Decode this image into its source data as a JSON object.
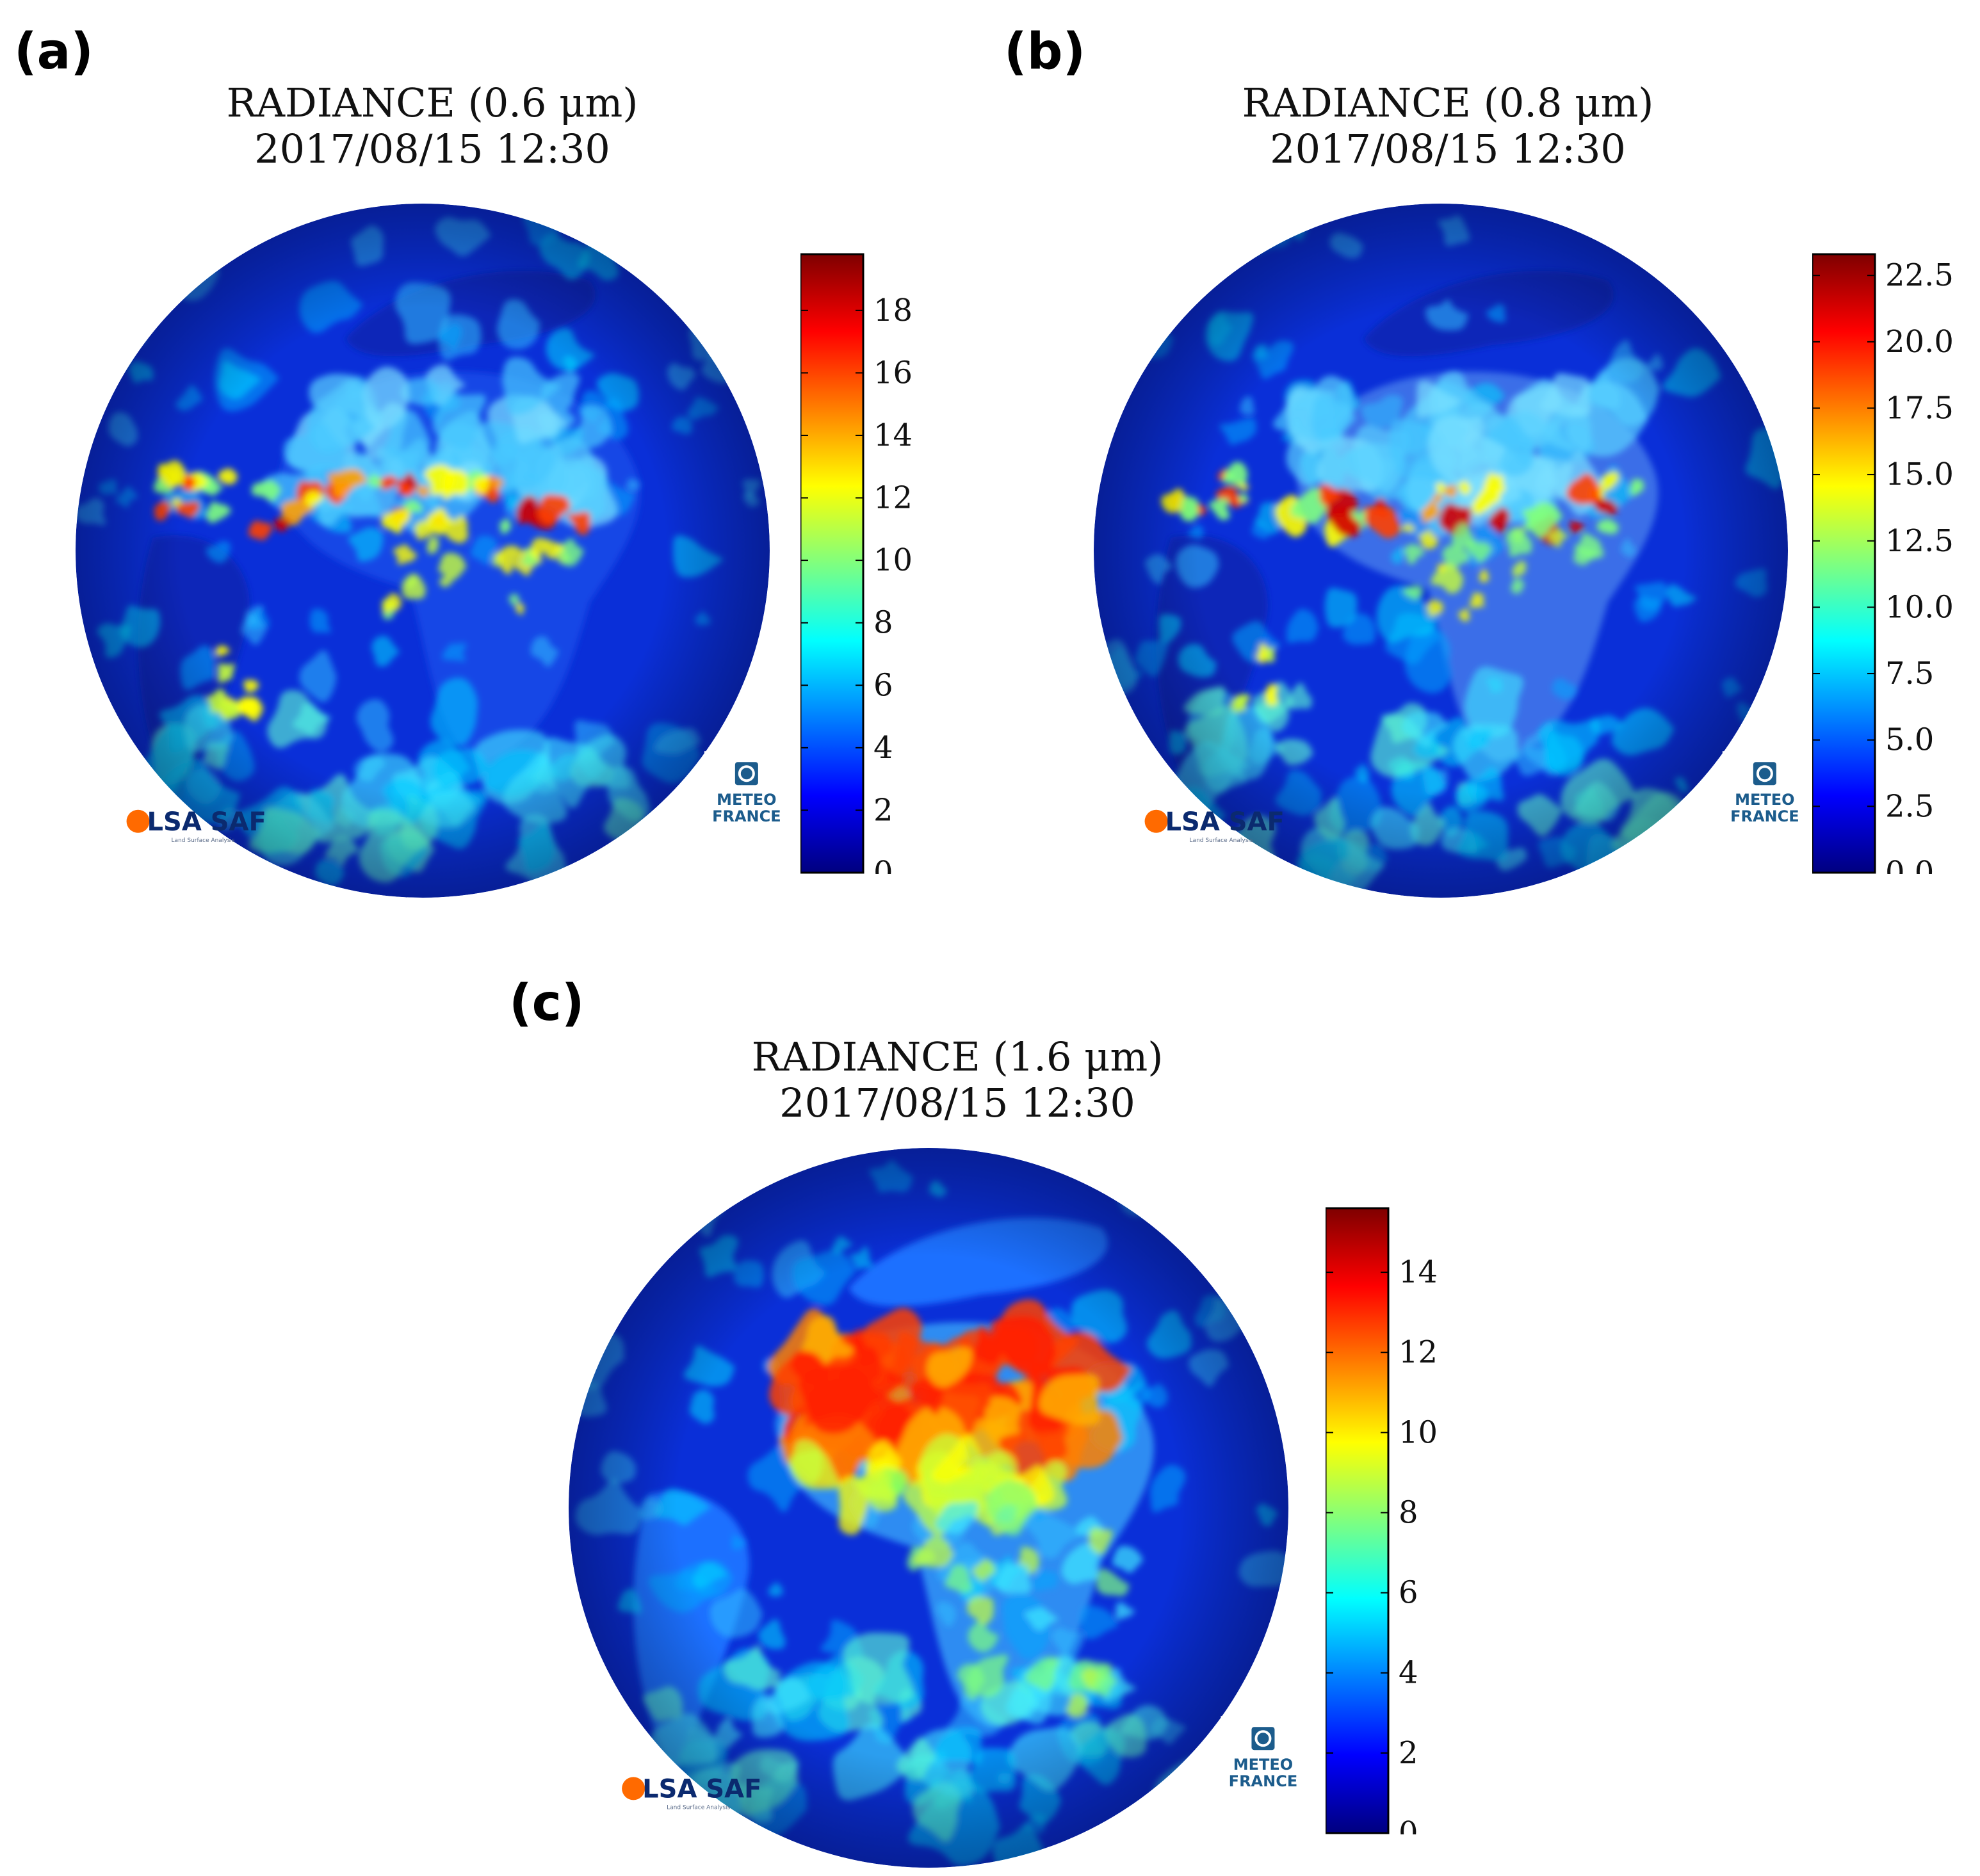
{
  "panels": [
    {
      "label": "(a)",
      "title_line1": "RADIANCE (0.6 μm)",
      "title_line2": "2017/08/15 12:30",
      "colorbar": {
        "min": 0,
        "max": 19.8,
        "ticks": [
          "0",
          "2",
          "4",
          "6",
          "8",
          "10",
          "12",
          "14",
          "16",
          "18"
        ],
        "tick_values": [
          0,
          2,
          4,
          6,
          8,
          10,
          12,
          14,
          16,
          18
        ]
      },
      "logos": {
        "lsa": "LSA SAF",
        "lsa_sub": "Land Surface Analysis",
        "mf_line1": "METEO",
        "mf_line2": "FRANCE"
      }
    },
    {
      "label": "(b)",
      "title_line1": "RADIANCE (0.8 μm)",
      "title_line2": "2017/08/15 12:30",
      "colorbar": {
        "min": 0,
        "max": 23.3,
        "ticks": [
          "0.0",
          "2.5",
          "5.0",
          "7.5",
          "10.0",
          "12.5",
          "15.0",
          "17.5",
          "20.0",
          "22.5"
        ],
        "tick_values": [
          0,
          2.5,
          5,
          7.5,
          10,
          12.5,
          15,
          17.5,
          20,
          22.5
        ]
      },
      "logos": {
        "lsa": "LSA SAF",
        "lsa_sub": "Land Surface Analysis",
        "mf_line1": "METEO",
        "mf_line2": "FRANCE"
      }
    },
    {
      "label": "(c)",
      "title_line1": "RADIANCE (1.6 μm)",
      "title_line2": "2017/08/15 12:30",
      "colorbar": {
        "min": 0,
        "max": 15.6,
        "ticks": [
          "0",
          "2",
          "4",
          "6",
          "8",
          "10",
          "12",
          "14"
        ],
        "tick_values": [
          0,
          2,
          4,
          6,
          8,
          10,
          12,
          14
        ]
      },
      "logos": {
        "lsa": "LSA SAF",
        "lsa_sub": "Land Surface Analysis",
        "mf_line1": "METEO",
        "mf_line2": "FRANCE"
      }
    }
  ],
  "colors": {
    "ocean": "#0a2fd8",
    "jet": [
      "#00007f",
      "#0000ff",
      "#007fff",
      "#00ffff",
      "#7fff7f",
      "#ffff00",
      "#ff7f00",
      "#ff0000",
      "#7f0000"
    ]
  }
}
